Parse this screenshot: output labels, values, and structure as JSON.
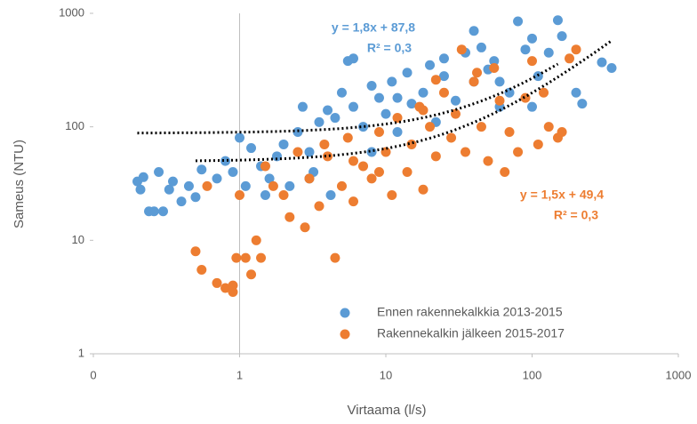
{
  "chart_data": {
    "type": "scatter",
    "x_label": "Virtaama (l/s)",
    "y_label": "Sameus (NTU)",
    "xscale": "log",
    "yscale": "log",
    "xlim": [
      0.1,
      1000
    ],
    "xticks": [
      {
        "value": 0.1,
        "label": "0"
      },
      1,
      10,
      100,
      1000
    ],
    "ylim": [
      1,
      1000
    ],
    "yticks": [
      1,
      10,
      100,
      1000
    ],
    "y_axis_crosses_x": 1,
    "legend": "lower right",
    "series": [
      {
        "name": "Ennen rakennekalkkia 2013-2015",
        "color": "#5b9bd5",
        "x": [
          0.2,
          0.21,
          0.22,
          0.24,
          0.26,
          0.28,
          0.3,
          0.33,
          0.35,
          0.4,
          0.45,
          0.5,
          0.55,
          0.7,
          0.8,
          0.9,
          1,
          1.1,
          1.2,
          1.4,
          1.6,
          1.8,
          2,
          2.2,
          2.5,
          2.7,
          3,
          3.2,
          3.5,
          4,
          4.2,
          4.5,
          5,
          5.5,
          6,
          6,
          7,
          8,
          9,
          10,
          11,
          12,
          14,
          15,
          18,
          20,
          22,
          25,
          30,
          35,
          40,
          45,
          50,
          55,
          60,
          70,
          80,
          90,
          100,
          110,
          130,
          150,
          160,
          200,
          220,
          300,
          350,
          25,
          8,
          3,
          1.5,
          12,
          40,
          60,
          100
        ],
        "values": [
          33,
          28,
          36,
          18,
          18,
          40,
          18,
          28,
          33,
          22,
          30,
          24,
          42,
          35,
          50,
          40,
          80,
          30,
          65,
          45,
          35,
          55,
          70,
          30,
          90,
          150,
          60,
          40,
          110,
          140,
          25,
          120,
          200,
          380,
          400,
          150,
          100,
          230,
          180,
          130,
          250,
          90,
          300,
          160,
          200,
          350,
          110,
          280,
          170,
          450,
          250,
          500,
          320,
          380,
          250,
          200,
          850,
          480,
          150,
          280,
          450,
          870,
          630,
          200,
          160,
          370,
          330,
          400,
          60,
          35,
          25,
          180,
          700,
          150,
          600
        ],
        "trendline": {
          "slope": 1.8,
          "intercept": 87.8,
          "xrange": [
            0.2,
            150
          ],
          "equation": "y = 1,8x + 87,8",
          "r2": "R² = 0,3"
        }
      },
      {
        "name": "Rakennekalkin jälkeen 2015-2017",
        "color": "#ed7d31",
        "x": [
          0.5,
          0.55,
          0.6,
          0.7,
          0.8,
          0.9,
          0.9,
          0.95,
          1,
          1.1,
          1.2,
          1.3,
          1.4,
          1.5,
          1.7,
          2,
          2.2,
          2.5,
          2.8,
          3,
          3.5,
          4,
          4.5,
          5,
          5.5,
          6,
          7,
          8,
          9,
          10,
          11,
          12,
          14,
          15,
          17,
          18,
          20,
          22,
          25,
          28,
          30,
          33,
          35,
          40,
          45,
          50,
          55,
          60,
          70,
          80,
          90,
          100,
          110,
          130,
          150,
          160,
          180,
          200,
          120,
          65,
          42,
          22,
          9,
          6,
          3.8,
          18
        ],
        "values": [
          8,
          5.5,
          30,
          4.2,
          3.8,
          3.5,
          4,
          7,
          25,
          7,
          5,
          10,
          7,
          45,
          30,
          25,
          16,
          60,
          13,
          35,
          20,
          55,
          7,
          30,
          80,
          22,
          45,
          35,
          90,
          60,
          25,
          120,
          40,
          70,
          150,
          28,
          100,
          55,
          200,
          80,
          130,
          480,
          60,
          250,
          100,
          50,
          330,
          170,
          90,
          60,
          180,
          380,
          70,
          100,
          80,
          90,
          400,
          480,
          200,
          40,
          300,
          260,
          40,
          50,
          70,
          140
        ],
        "trendline": {
          "slope": 1.5,
          "intercept": 49.4,
          "xrange": [
            0.5,
            350
          ],
          "equation": "y = 1,5x + 49,4",
          "r2": "R² = 0,3"
        }
      }
    ]
  }
}
